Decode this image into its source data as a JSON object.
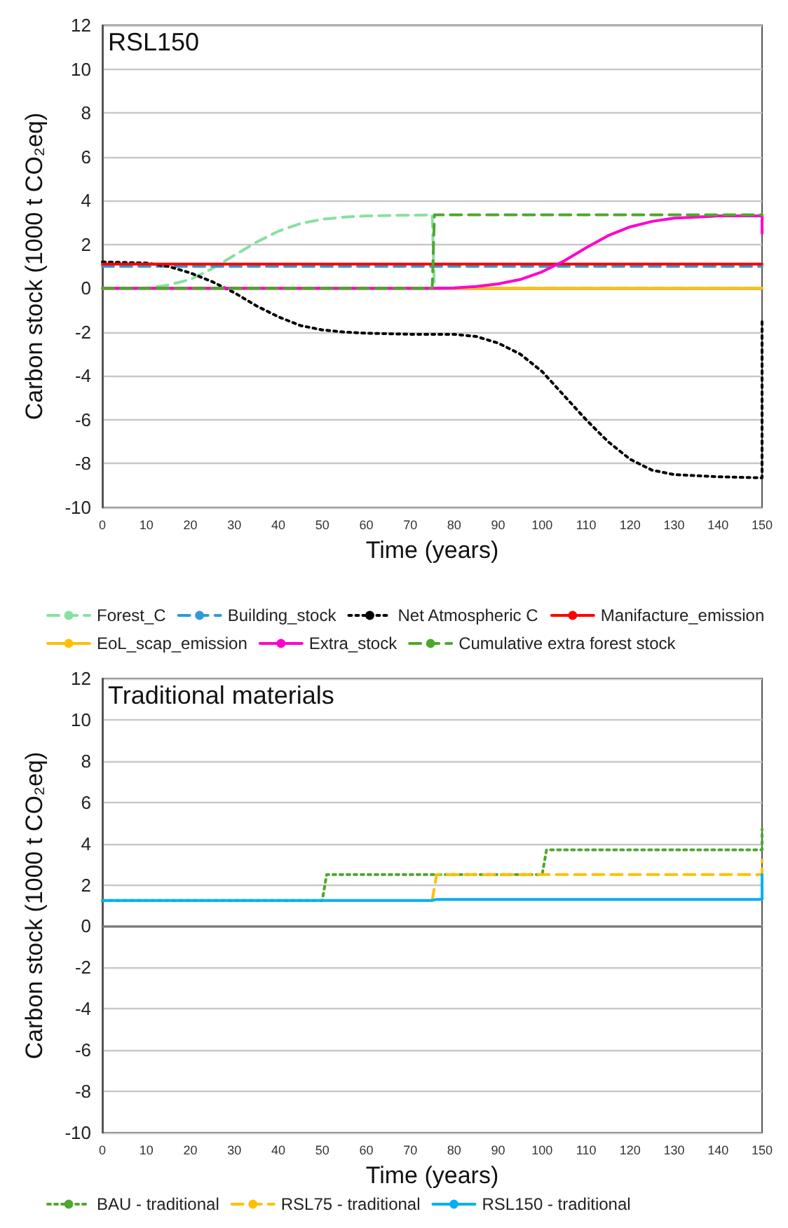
{
  "chart_data": [
    {
      "type": "line",
      "title": "RSL150",
      "xlabel": "Time (years)",
      "ylabel": "Carbon stock (1000 t CO₂eq)",
      "xlim": [
        0,
        150
      ],
      "xticks": [
        0,
        10,
        20,
        30,
        40,
        50,
        60,
        70,
        80,
        90,
        100,
        110,
        120,
        130,
        140,
        150
      ],
      "ylim": [
        -10,
        12
      ],
      "yticks": [
        -10,
        -8,
        -6,
        -4,
        -2,
        0,
        2,
        4,
        6,
        8,
        10,
        12
      ],
      "grid": "y",
      "legend": "bottom",
      "marker": "none",
      "series": [
        {
          "name": "Forest_C",
          "color": "#88e0a0",
          "line_style": "dashed",
          "x": [
            0,
            10,
            15,
            20,
            25,
            30,
            35,
            40,
            45,
            50,
            55,
            60,
            75,
            75.5,
            150
          ],
          "values": [
            0,
            0,
            0.15,
            0.4,
            0.9,
            1.5,
            2.1,
            2.6,
            2.95,
            3.15,
            3.25,
            3.3,
            3.35,
            0,
            0
          ]
        },
        {
          "name": "Building_stock",
          "color": "#2e9bd6",
          "line_style": "dashed",
          "x": [
            0,
            150
          ],
          "values": [
            1,
            1
          ]
        },
        {
          "name": "Net Atmospheric C",
          "color": "#000000",
          "line_style": "dotted",
          "x": [
            0,
            10,
            15,
            20,
            25,
            30,
            35,
            40,
            45,
            50,
            55,
            60,
            70,
            80,
            85,
            90,
            95,
            100,
            105,
            110,
            115,
            120,
            125,
            130,
            140,
            150,
            150
          ],
          "values": [
            1.2,
            1.15,
            1,
            0.7,
            0.3,
            -0.2,
            -0.8,
            -1.3,
            -1.7,
            -1.9,
            -2,
            -2.05,
            -2.1,
            -2.1,
            -2.2,
            -2.5,
            -3,
            -3.8,
            -4.9,
            -6,
            -7,
            -7.8,
            -8.3,
            -8.5,
            -8.6,
            -8.65,
            -1.5
          ]
        },
        {
          "name": "Manifacture_emission",
          "color": "#ff0000",
          "line_style": "solid",
          "x": [
            0,
            150
          ],
          "values": [
            1.1,
            1.1
          ]
        },
        {
          "name": "EoL_scap_emission",
          "color": "#ffc000",
          "line_style": "solid",
          "x": [
            0,
            150
          ],
          "values": [
            0,
            0
          ]
        },
        {
          "name": "Extra_stock",
          "color": "#ff00cc",
          "line_style": "solid",
          "x": [
            0,
            75,
            80,
            85,
            90,
            95,
            100,
            105,
            110,
            115,
            120,
            125,
            130,
            140,
            150,
            150
          ],
          "values": [
            0,
            0,
            0.02,
            0.08,
            0.2,
            0.4,
            0.75,
            1.25,
            1.85,
            2.4,
            2.8,
            3.05,
            3.2,
            3.3,
            3.3,
            2.5
          ]
        },
        {
          "name": "Cumulative extra forest stock",
          "color": "#4ea72e",
          "line_style": "dashed",
          "x": [
            0,
            75,
            75.5,
            150
          ],
          "values": [
            0,
            0,
            3.35,
            3.35
          ]
        }
      ]
    },
    {
      "type": "line",
      "title": "Traditional materials",
      "xlabel": "Time (years)",
      "ylabel": "Carbon stock (1000 t CO₂eq)",
      "xlim": [
        0,
        150
      ],
      "xticks": [
        0,
        10,
        20,
        30,
        40,
        50,
        60,
        70,
        80,
        90,
        100,
        110,
        120,
        130,
        140,
        150
      ],
      "ylim": [
        -10,
        12
      ],
      "yticks": [
        -10,
        -8,
        -6,
        -4,
        -2,
        0,
        2,
        4,
        6,
        8,
        10,
        12
      ],
      "grid": "y",
      "legend": "bottom",
      "marker": "none",
      "series": [
        {
          "name": "BAU - traditional",
          "color": "#4ea72e",
          "line_style": "dotted",
          "x": [
            0,
            50,
            51,
            100,
            101,
            150,
            150
          ],
          "values": [
            1.25,
            1.25,
            2.5,
            2.5,
            3.7,
            3.7,
            4.7
          ]
        },
        {
          "name": "RSL75 - traditional",
          "color": "#ffc000",
          "line_style": "dashed",
          "x": [
            75,
            76,
            150,
            150
          ],
          "values": [
            1.25,
            2.5,
            2.5,
            3.2
          ]
        },
        {
          "name": "RSL150 - traditional",
          "color": "#00b0f0",
          "line_style": "solid",
          "x": [
            0,
            75,
            76,
            150,
            150
          ],
          "values": [
            1.25,
            1.25,
            1.3,
            1.3,
            2.5
          ]
        }
      ]
    }
  ]
}
